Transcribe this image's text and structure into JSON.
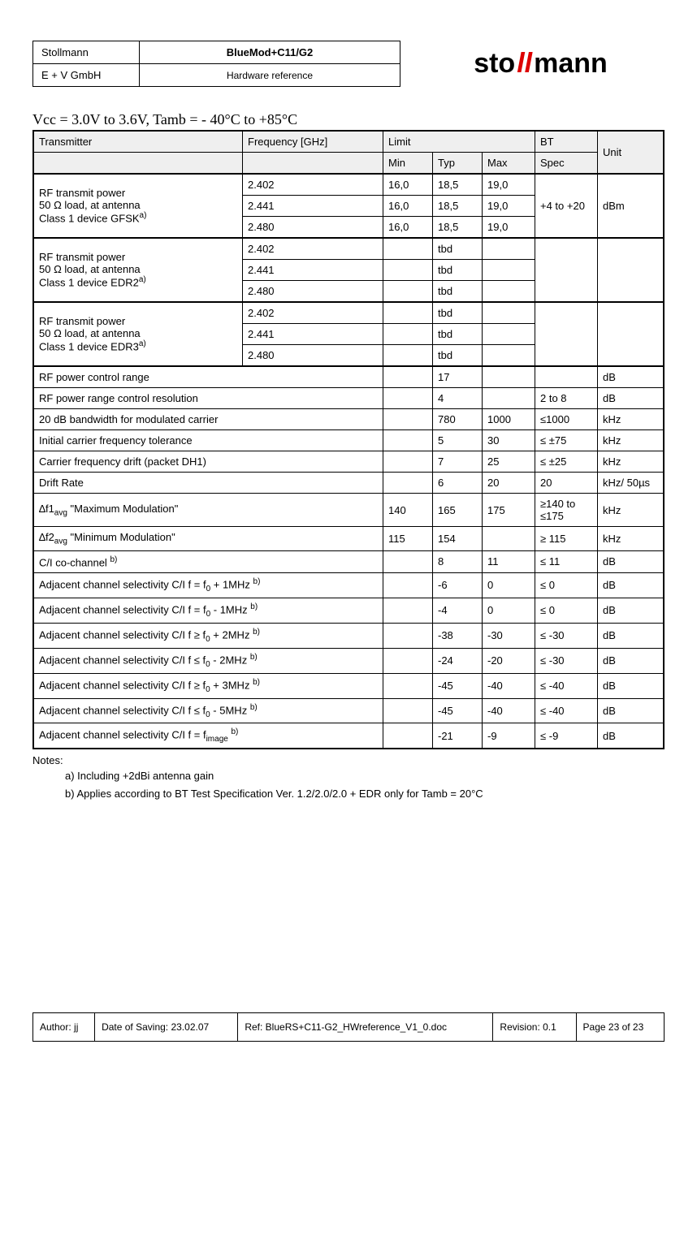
{
  "header": {
    "company": "Stollmann",
    "division": "E + V GmbH",
    "product": "BlueMod+C11/G2",
    "doc_type": "Hardware reference",
    "logo_main": "sto",
    "logo_slash": "ll",
    "logo_end": "mann"
  },
  "condition": "Vcc = 3.0V to 3.6V, Tamb = - 40°C to +85°C",
  "thead": {
    "transmitter": "Transmitter",
    "frequency": "Frequency [GHz]",
    "limit": "Limit",
    "bt": "BT",
    "unit": "Unit",
    "min": "Min",
    "typ": "Typ",
    "max": "Max",
    "spec": "Spec"
  },
  "group1": {
    "label_l1": "RF transmit power",
    "label_l2": "50 Ω load, at antenna",
    "label_l3": "Class 1 device GFSK",
    "sup": "a)",
    "bt": "+4 to +20",
    "unit": "dBm",
    "rows": [
      {
        "freq": "2.402",
        "min": "16,0",
        "typ": "18,5",
        "max": "19,0"
      },
      {
        "freq": "2.441",
        "min": "16,0",
        "typ": "18,5",
        "max": "19,0"
      },
      {
        "freq": "2.480",
        "min": "16,0",
        "typ": "18,5",
        "max": "19,0"
      }
    ]
  },
  "group2": {
    "label_l1": "RF transmit power",
    "label_l2": "50 Ω load, at antenna",
    "label_l3": "Class 1 device EDR2",
    "sup": "a)",
    "rows": [
      {
        "freq": "2.402",
        "min": "",
        "typ": "tbd",
        "max": ""
      },
      {
        "freq": "2.441",
        "min": "",
        "typ": "tbd",
        "max": ""
      },
      {
        "freq": "2.480",
        "min": "",
        "typ": "tbd",
        "max": ""
      }
    ]
  },
  "group3": {
    "label_l1": "RF transmit power",
    "label_l2": "50 Ω load, at antenna",
    "label_l3": "Class 1 device EDR3",
    "sup": "a)",
    "rows": [
      {
        "freq": "2.402",
        "min": "",
        "typ": "tbd",
        "max": ""
      },
      {
        "freq": "2.441",
        "min": "",
        "typ": "tbd",
        "max": ""
      },
      {
        "freq": "2.480",
        "min": "",
        "typ": "tbd",
        "max": ""
      }
    ]
  },
  "single_rows": [
    {
      "label": "RF power control range",
      "sup": "",
      "min": "",
      "typ": "17",
      "max": "",
      "bt": "",
      "unit": "dB"
    },
    {
      "label": "RF power range control resolution",
      "sup": "",
      "min": "",
      "typ": "4",
      "max": "",
      "bt": "2 to 8",
      "unit": "dB"
    },
    {
      "label": "20 dB bandwidth for modulated carrier",
      "sup": "",
      "min": "",
      "typ": "780",
      "max": "1000",
      "bt": "≤1000",
      "unit": "kHz"
    },
    {
      "label": "Initial carrier frequency tolerance",
      "sup": "",
      "min": "",
      "typ": "5",
      "max": "30",
      "bt": "≤ ±75",
      "unit": "kHz"
    },
    {
      "label": "Carrier frequency drift (packet DH1)",
      "sup": "",
      "min": "",
      "typ": "7",
      "max": "25",
      "bt": "≤ ±25",
      "unit": "kHz"
    },
    {
      "label": "Drift Rate",
      "sup": "",
      "min": "",
      "typ": "6",
      "max": "20",
      "bt": "20",
      "unit": "kHz/ 50µs"
    }
  ],
  "delta_rows": [
    {
      "delta": "∆f1",
      "sub": "avg",
      "quote": " \"Maximum Modulation\"",
      "min": "140",
      "typ": "165",
      "max": "175",
      "bt": "≥140 to ≤175",
      "unit": "kHz"
    },
    {
      "delta": "∆f2",
      "sub": "avg",
      "quote": " \"Minimum Modulation\"",
      "min": "115",
      "typ": "154",
      "max": "",
      "bt": "≥ 115",
      "unit": "kHz"
    }
  ],
  "ci_rows": [
    {
      "pre": "C/I co-channel ",
      "sub": "",
      "post": "",
      "sup": "b)",
      "min": "",
      "typ": "8",
      "max": "11",
      "bt": "≤ 11",
      "unit": "dB"
    },
    {
      "pre": "Adjacent channel selectivity C/I f = f",
      "sub": "0",
      "post": " + 1MHz ",
      "sup": "b)",
      "min": "",
      "typ": "-6",
      "max": "0",
      "bt": "≤ 0",
      "unit": "dB"
    },
    {
      "pre": "Adjacent channel selectivity C/I f = f",
      "sub": "0",
      "post": " -  1MHz ",
      "sup": "b)",
      "min": "",
      "typ": "-4",
      "max": "0",
      "bt": "≤ 0",
      "unit": "dB"
    },
    {
      "pre": "Adjacent channel selectivity C/I f ≥ f",
      "sub": "0",
      "post": " + 2MHz ",
      "sup": "b)",
      "min": "",
      "typ": "-38",
      "max": "-30",
      "bt": "≤ -30",
      "unit": "dB"
    },
    {
      "pre": "Adjacent channel selectivity C/I f ≤ f",
      "sub": "0",
      "post": " - 2MHz ",
      "sup": "b)",
      "min": "",
      "typ": "-24",
      "max": "-20",
      "bt": "≤ -30",
      "unit": "dB"
    },
    {
      "pre": "Adjacent channel selectivity C/I f ≥ f",
      "sub": "0",
      "post": " + 3MHz ",
      "sup": "b)",
      "min": "",
      "typ": "-45",
      "max": "-40",
      "bt": "≤ -40",
      "unit": "dB"
    },
    {
      "pre": "Adjacent channel selectivity C/I f ≤ f",
      "sub": "0",
      "post": "  - 5MHz ",
      "sup": "b)",
      "min": "",
      "typ": "-45",
      "max": "-40",
      "bt": "≤ -40",
      "unit": "dB"
    },
    {
      "pre": "Adjacent channel selectivity C/I f = f",
      "sub": "image",
      "post": " ",
      "sup": "b)",
      "min": "",
      "typ": "-21",
      "max": "-9",
      "bt": "≤ -9",
      "unit": "dB"
    }
  ],
  "notes": {
    "title": "Notes:",
    "a": "a)    Including +2dBi antenna gain",
    "b": "b)    Applies according to BT Test Specification Ver. 1.2/2.0/2.0 + EDR only for Tamb = 20°C"
  },
  "footer": {
    "author": "Author: jj",
    "date": "Date of Saving: 23.02.07",
    "ref": "Ref: BlueRS+C11-G2_HWreference_V1_0.doc",
    "rev": "Revision: 0.1",
    "page": "Page 23 of 23"
  }
}
